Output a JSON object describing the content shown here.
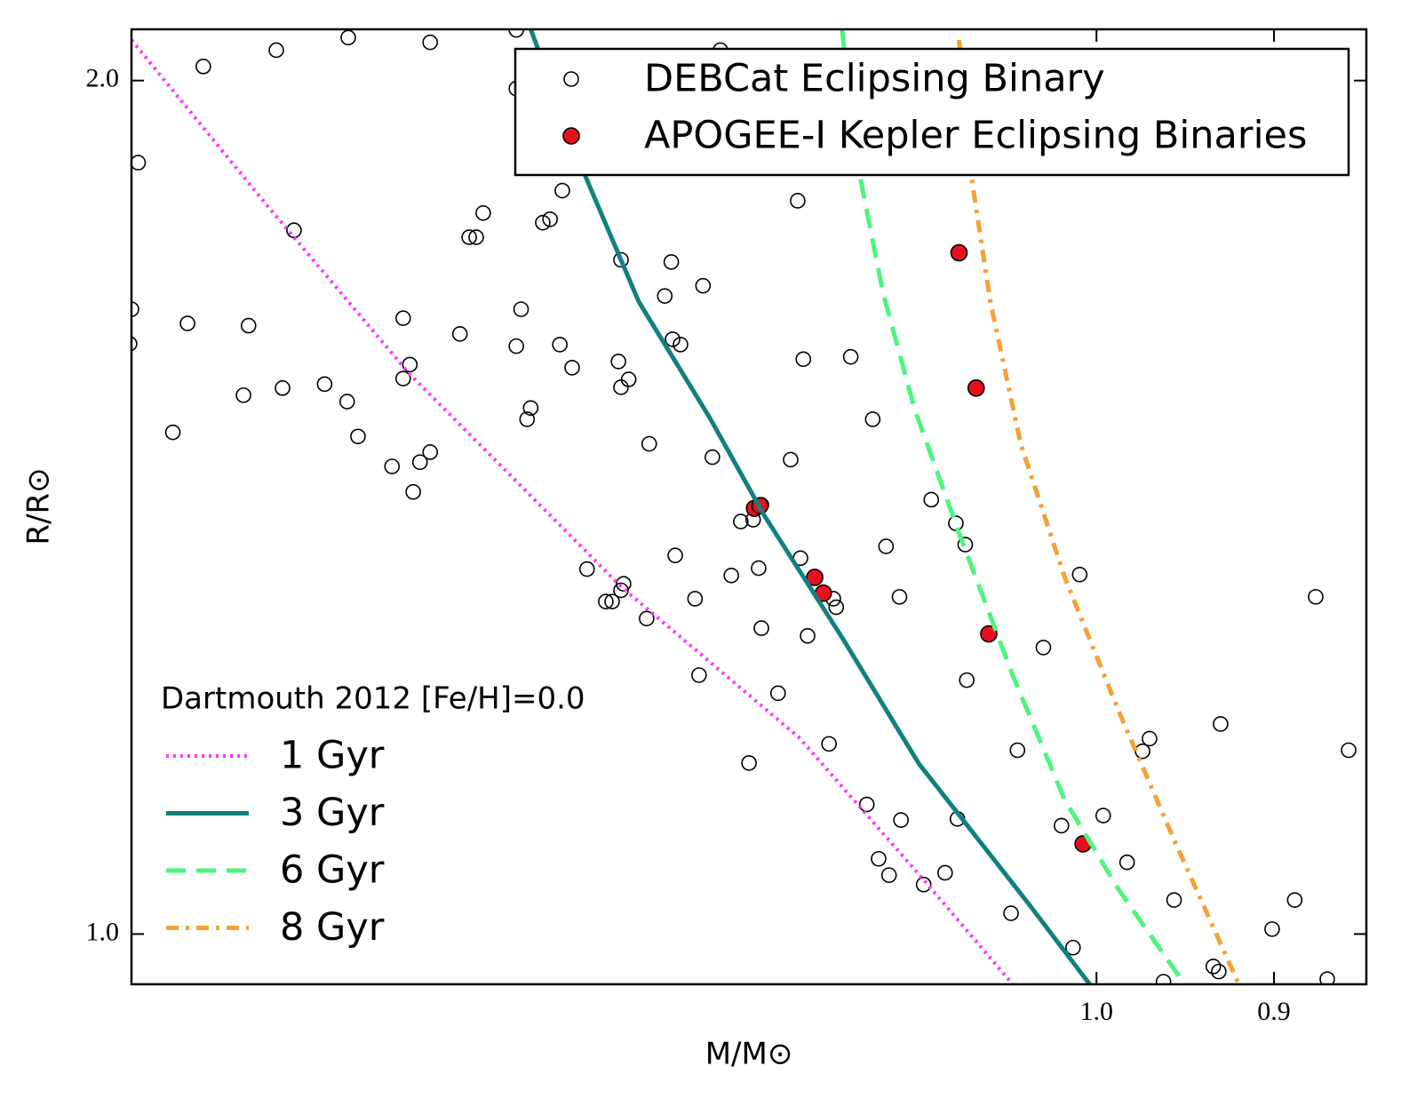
{
  "chart_data": {
    "type": "scatter",
    "x_label": "M/M⊙",
    "y_label": "R/R⊙",
    "xscale": "log",
    "yscale": "log",
    "xlim": [
      1.773,
      0.852
    ],
    "ylim": [
      0.96,
      2.085
    ],
    "xticks": [
      {
        "value": 1.0,
        "label": "1.0"
      },
      {
        "value": 0.9,
        "label": "0.9"
      }
    ],
    "yticks": [
      {
        "value": 1.0,
        "label": "1.0"
      },
      {
        "value": 2.0,
        "label": "2.0"
      }
    ],
    "grid": false,
    "legend_title": {
      "loc": "lower left",
      "text": "Dartmouth 2012 [Fe/H]=0.0"
    },
    "series": [
      {
        "name": "DEBCat Eclipsing Binary",
        "type": "scatter",
        "color": "#000000",
        "fill": "none",
        "legend": "upper right",
        "x": [
          1.699,
          1.627,
          1.559,
          1.485,
          1.411,
          1.411,
          1.766,
          1.773,
          1.775,
          1.715,
          1.654,
          1.61,
          1.73,
          1.659,
          1.621,
          1.581,
          1.56,
          1.55,
          1.519,
          1.509,
          1.503,
          1.509,
          1.5,
          1.494,
          1.485,
          1.459,
          1.451,
          1.445,
          1.439,
          1.407,
          1.411,
          1.399,
          1.402,
          1.389,
          1.383,
          1.373,
          1.375,
          1.365,
          1.326,
          1.287,
          1.292,
          1.263,
          1.286,
          1.28,
          1.328,
          1.32,
          1.326,
          1.304,
          1.256,
          1.194,
          1.19,
          1.157,
          1.142,
          1.199,
          1.103,
          1.087,
          1.081,
          1.235,
          1.226,
          1.22,
          1.353,
          1.284,
          1.242,
          1.222,
          1.192,
          1.133,
          1.124,
          1.324,
          1.326,
          1.338,
          1.333,
          1.306,
          1.269,
          1.22,
          1.169,
          1.167,
          1.187,
          1.01,
          0.878,
          1.032,
          1.08,
          1.266,
          1.208,
          0.929,
          0.969,
          0.973,
          1.048,
          0.861,
          1.172,
          1.229,
          1.146,
          1.123,
          1.086,
          1.021,
          0.996,
          1.138,
          1.131,
          1.108,
          1.094,
          0.982,
          0.955,
          0.889,
          1.052,
          1.014,
          0.901,
          0.933,
          0.93,
          0.961,
          0.872,
          1.25
        ],
        "values": [
          2.023,
          2.05,
          2.071,
          2.063,
          2.084,
          1.987,
          1.871,
          1.661,
          1.615,
          1.642,
          1.639,
          1.771,
          1.503,
          1.549,
          1.558,
          1.563,
          1.541,
          1.498,
          1.462,
          1.649,
          1.588,
          1.57,
          1.432,
          1.467,
          1.479,
          1.628,
          1.761,
          1.761,
          1.796,
          1.661,
          1.612,
          1.533,
          1.519,
          1.782,
          1.787,
          1.829,
          1.614,
          1.584,
          1.729,
          1.726,
          1.679,
          1.693,
          1.621,
          1.614,
          1.592,
          1.569,
          1.559,
          1.489,
          1.473,
          1.814,
          1.595,
          1.598,
          1.519,
          1.47,
          1.423,
          1.396,
          1.372,
          1.398,
          1.4,
          1.417,
          1.345,
          1.36,
          1.338,
          1.346,
          1.357,
          1.37,
          1.315,
          1.329,
          1.322,
          1.31,
          1.31,
          1.292,
          1.313,
          1.282,
          1.313,
          1.304,
          1.274,
          1.339,
          1.315,
          1.262,
          1.229,
          1.234,
          1.216,
          1.186,
          1.172,
          1.16,
          1.161,
          1.161,
          1.167,
          1.149,
          1.111,
          1.097,
          1.098,
          1.092,
          1.101,
          1.063,
          1.049,
          1.041,
          1.051,
          1.06,
          1.028,
          1.028,
          1.017,
          0.989,
          1.004,
          0.974,
          0.97,
          0.962,
          0.964,
          2.05
        ]
      },
      {
        "name": "APOGEE-I Kepler Eclipsing Binaries",
        "type": "scatter",
        "color": "#000000",
        "fill": "#e8101f",
        "legend": "upper right",
        "x": [
          1.085,
          1.074,
          1.225,
          1.221,
          1.182,
          1.176,
          1.066,
          1.008
        ],
        "values": [
          1.739,
          1.558,
          1.413,
          1.416,
          1.336,
          1.319,
          1.276,
          1.076
        ]
      },
      {
        "name": "1 Gyr",
        "type": "line",
        "color": "#ff33ff",
        "linestyle": "dotted",
        "legend": "lower left",
        "x": [
          1.773,
          1.637,
          1.504,
          1.326,
          1.193,
          1.108,
          1.051
        ],
        "values": [
          2.067,
          1.809,
          1.577,
          1.326,
          1.173,
          1.045,
          0.96
        ]
      },
      {
        "name": "3 Gyr",
        "type": "line",
        "color": "#138080",
        "linestyle": "solid",
        "legend": "lower left",
        "x": [
          1.399,
          1.354,
          1.312,
          1.258,
          1.218,
          1.162,
          1.111,
          1.097,
          1.04,
          1.004
        ],
        "values": [
          2.085,
          1.849,
          1.671,
          1.521,
          1.405,
          1.27,
          1.148,
          1.123,
          1.023,
          0.96
        ]
      },
      {
        "name": "6 Gyr",
        "type": "line",
        "color": "#4cf57c",
        "linestyle": "dashed",
        "legend": "lower left",
        "x": [
          1.163,
          1.153,
          1.135,
          1.114,
          1.085,
          1.051,
          1.019,
          0.987,
          0.949
        ],
        "values": [
          2.085,
          1.876,
          1.683,
          1.532,
          1.385,
          1.234,
          1.115,
          1.037,
          0.96
        ]
      },
      {
        "name": "8 Gyr",
        "type": "line",
        "color": "#f5a133",
        "linestyle": "dashdot",
        "legend": "lower left",
        "x": [
          1.085,
          1.077,
          1.065,
          1.046,
          1.019,
          0.987,
          0.956,
          0.919
        ],
        "values": [
          2.067,
          1.849,
          1.671,
          1.489,
          1.336,
          1.199,
          1.083,
          0.96
        ]
      }
    ]
  }
}
